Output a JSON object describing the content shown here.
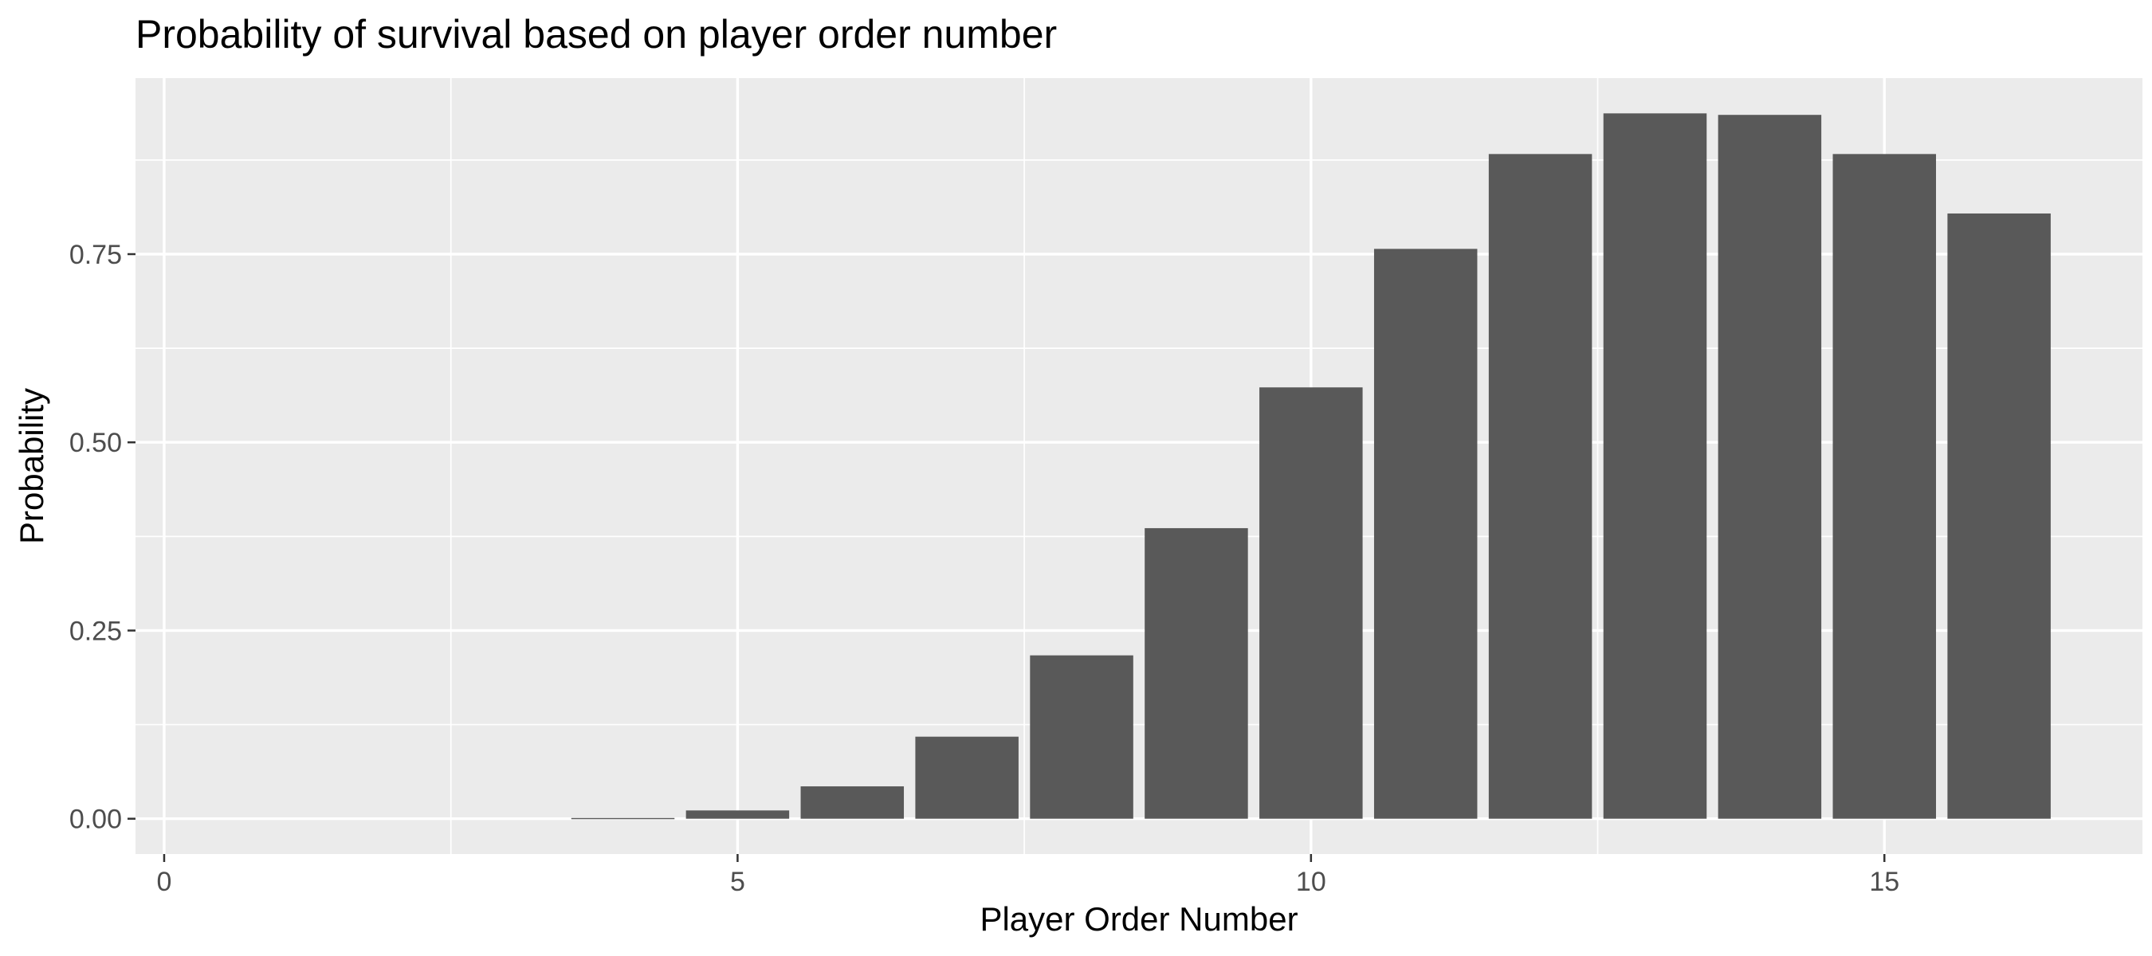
{
  "chart_data": {
    "type": "bar",
    "title": "Probability of survival based on player order number",
    "xlabel": "Player Order Number",
    "ylabel": "Probability",
    "x": [
      1,
      2,
      3,
      4,
      5,
      6,
      7,
      8,
      9,
      10,
      11,
      12,
      13,
      14,
      15,
      16
    ],
    "values": [
      0,
      0,
      0,
      0.001,
      0.011,
      0.043,
      0.109,
      0.217,
      0.386,
      0.573,
      0.757,
      0.883,
      0.937,
      0.935,
      0.883,
      0.804
    ],
    "xlim": [
      -0.25,
      17.25
    ],
    "ylim": [
      -0.0469,
      0.9839
    ],
    "x_ticks": [
      0,
      5,
      10,
      15
    ],
    "x_tick_labels": [
      "0",
      "5",
      "10",
      "15"
    ],
    "y_ticks": [
      0,
      0.25,
      0.5,
      0.75
    ],
    "y_tick_labels": [
      "0.00",
      "0.25",
      "0.50",
      "0.75"
    ],
    "grid": true,
    "colors": {
      "bar": "#595959",
      "panel": "#ebebeb",
      "grid": "#ffffff"
    }
  }
}
